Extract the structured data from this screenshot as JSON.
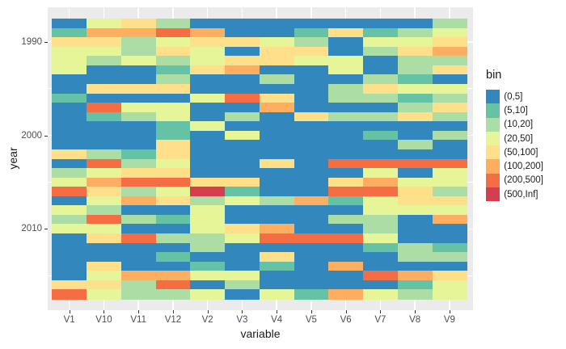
{
  "figure": {
    "background": "#FFFFFF",
    "panel_background": "#EBEBEB",
    "gridline_color": "#FFFFFF",
    "tick_color": "#333333",
    "axis_text_color": "#4D4D4D",
    "axis_title_color": "#1A1A1A"
  },
  "chart_data": {
    "type": "heatmap",
    "title": "",
    "xlabel": "variable",
    "ylabel": "year",
    "x_categories": [
      "V1",
      "V10",
      "V11",
      "V12",
      "V2",
      "V3",
      "V4",
      "V5",
      "V6",
      "V7",
      "V8",
      "V9"
    ],
    "y_range": [
      1988,
      2017
    ],
    "y_major_ticks": [
      1990,
      2000,
      2010
    ],
    "y_minor_ticks": [
      1995,
      2005,
      2015
    ],
    "legend": {
      "title": "bin",
      "position": "right",
      "entries": [
        {
          "code": "B",
          "label": "(0,5]",
          "color": "#3288BD"
        },
        {
          "code": "T",
          "label": "(5,10]",
          "color": "#66C2A5"
        },
        {
          "code": "G",
          "label": "(10,20]",
          "color": "#ABDDA4"
        },
        {
          "code": "P",
          "label": "(20,50]",
          "color": "#E6F598"
        },
        {
          "code": "Y",
          "label": "(50,100]",
          "color": "#FEE08B"
        },
        {
          "code": "O",
          "label": "(100,200]",
          "color": "#FDAE61"
        },
        {
          "code": "R",
          "label": "(200,500]",
          "color": "#F46D43"
        },
        {
          "code": "D",
          "label": "(500,Inf]",
          "color": "#D53E4F"
        }
      ]
    },
    "rows": [
      {
        "year": 1988,
        "cells": "BPYGBBBBBBBG"
      },
      {
        "year": 1989,
        "cells": "TOOROBBTYTGP"
      },
      {
        "year": 1990,
        "cells": "YYGPYYPGBPPY"
      },
      {
        "year": 1991,
        "cells": "PPGYPBYYBGYO"
      },
      {
        "year": 1992,
        "cells": "PGPGPYYPPBGG"
      },
      {
        "year": 1993,
        "cells": "PBBTYOBBPBGY"
      },
      {
        "year": 1994,
        "cells": "BBBGBBGBBGTB"
      },
      {
        "year": 1995,
        "cells": "BYYYBBBBGYPP"
      },
      {
        "year": 1996,
        "cells": "TBBBPRYBGGTG"
      },
      {
        "year": 1997,
        "cells": "BRPPBBOBBBGY"
      },
      {
        "year": 1998,
        "cells": "BTGPBGBYGGYG"
      },
      {
        "year": 1999,
        "cells": "BBBTPBBBBBBB"
      },
      {
        "year": 2000,
        "cells": "BBBTBPBBBTBG"
      },
      {
        "year": 2001,
        "cells": "BBBYBBBBBBGB"
      },
      {
        "year": 2002,
        "cells": "YGTYBBBBBBBB"
      },
      {
        "year": 2003,
        "cells": "BRGPBBYBRRRR"
      },
      {
        "year": 2004,
        "cells": "GPYYBBBBBPBP"
      },
      {
        "year": 2005,
        "cells": "PORRYYBBYOPP"
      },
      {
        "year": 2006,
        "cells": "RYGPDTBBRRYG"
      },
      {
        "year": 2007,
        "cells": "BPOYGPGOTPYY"
      },
      {
        "year": 2008,
        "cells": "PGBBPBBBBPPP"
      },
      {
        "year": 2009,
        "cells": "GRGTPBBBGGBO"
      },
      {
        "year": 2010,
        "cells": "PPBBPYOBBGBB"
      },
      {
        "year": 2011,
        "cells": "BYRGGPRRRPBB"
      },
      {
        "year": 2012,
        "cells": "BBBBGBBBBTGT"
      },
      {
        "year": 2013,
        "cells": "BBBTBBYBBBGG"
      },
      {
        "year": 2014,
        "cells": "BYBBTBTBOBBB"
      },
      {
        "year": 2015,
        "cells": "BPOOPPBBBROY"
      },
      {
        "year": 2016,
        "cells": "YYGRBGBBBBTP"
      },
      {
        "year": 2017,
        "cells": "RPGGPBPTOPGP"
      }
    ]
  }
}
